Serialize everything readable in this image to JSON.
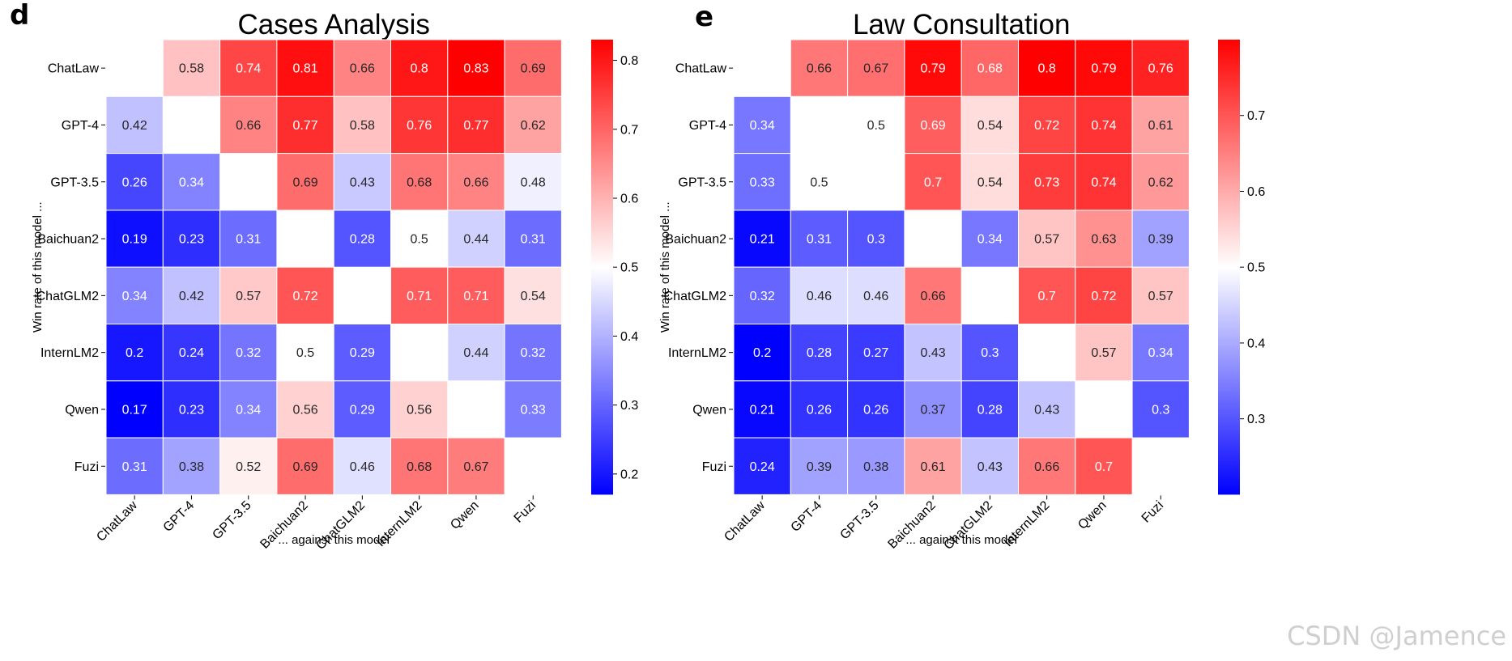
{
  "watermark": "CSDN @Jamence",
  "chart_data": [
    {
      "type": "heatmap",
      "panel_label": "d",
      "title": "Cases Analysis",
      "xlabel": "... against this model",
      "ylabel": "Win rate of this model ...",
      "rows": [
        "ChatLaw",
        "GPT-4",
        "GPT-3.5",
        "Baichuan2",
        "ChatGLM2",
        "InternLM2",
        "Qwen",
        "Fuzi"
      ],
      "cols": [
        "ChatLaw",
        "GPT-4",
        "GPT-3.5",
        "Baichuan2",
        "ChatGLM2",
        "InternLM2",
        "Qwen",
        "Fuzi"
      ],
      "values": [
        [
          null,
          0.58,
          0.74,
          0.81,
          0.66,
          0.8,
          0.83,
          0.69
        ],
        [
          0.42,
          null,
          0.66,
          0.77,
          0.58,
          0.76,
          0.77,
          0.62
        ],
        [
          0.26,
          0.34,
          null,
          0.69,
          0.43,
          0.68,
          0.66,
          0.48
        ],
        [
          0.19,
          0.23,
          0.31,
          null,
          0.28,
          0.5,
          0.44,
          0.31
        ],
        [
          0.34,
          0.42,
          0.57,
          0.72,
          null,
          0.71,
          0.71,
          0.54
        ],
        [
          0.2,
          0.24,
          0.32,
          0.5,
          0.29,
          null,
          0.44,
          0.32
        ],
        [
          0.17,
          0.23,
          0.34,
          0.56,
          0.29,
          0.56,
          null,
          0.33
        ],
        [
          0.31,
          0.38,
          0.52,
          0.69,
          0.46,
          0.68,
          0.67,
          null
        ]
      ],
      "colormap": "bwr",
      "vmin": 0.17,
      "vmax": 0.83,
      "colorbar_ticks": [
        0.2,
        0.3,
        0.4,
        0.5,
        0.6,
        0.7,
        0.8
      ]
    },
    {
      "type": "heatmap",
      "panel_label": "e",
      "title": "Law Consultation",
      "xlabel": "... against this model",
      "ylabel": "Win rate of this model ...",
      "rows": [
        "ChatLaw",
        "GPT-4",
        "GPT-3.5",
        "Baichuan2",
        "ChatGLM2",
        "InternLM2",
        "Qwen",
        "Fuzi"
      ],
      "cols": [
        "ChatLaw",
        "GPT-4",
        "GPT-3.5",
        "Baichuan2",
        "ChatGLM2",
        "InternLM2",
        "Qwen",
        "Fuzi"
      ],
      "values": [
        [
          null,
          0.66,
          0.67,
          0.79,
          0.68,
          0.8,
          0.79,
          0.76
        ],
        [
          0.34,
          null,
          0.5,
          0.69,
          0.54,
          0.72,
          0.74,
          0.61
        ],
        [
          0.33,
          0.5,
          null,
          0.7,
          0.54,
          0.73,
          0.74,
          0.62
        ],
        [
          0.21,
          0.31,
          0.3,
          null,
          0.34,
          0.57,
          0.63,
          0.39
        ],
        [
          0.32,
          0.46,
          0.46,
          0.66,
          null,
          0.7,
          0.72,
          0.57
        ],
        [
          0.2,
          0.28,
          0.27,
          0.43,
          0.3,
          null,
          0.57,
          0.34
        ],
        [
          0.21,
          0.26,
          0.26,
          0.37,
          0.28,
          0.43,
          null,
          0.3
        ],
        [
          0.24,
          0.39,
          0.38,
          0.61,
          0.43,
          0.66,
          0.7,
          null
        ]
      ],
      "colormap": "bwr",
      "vmin": 0.2,
      "vmax": 0.8,
      "colorbar_ticks": [
        0.3,
        0.4,
        0.5,
        0.6,
        0.7
      ]
    }
  ]
}
